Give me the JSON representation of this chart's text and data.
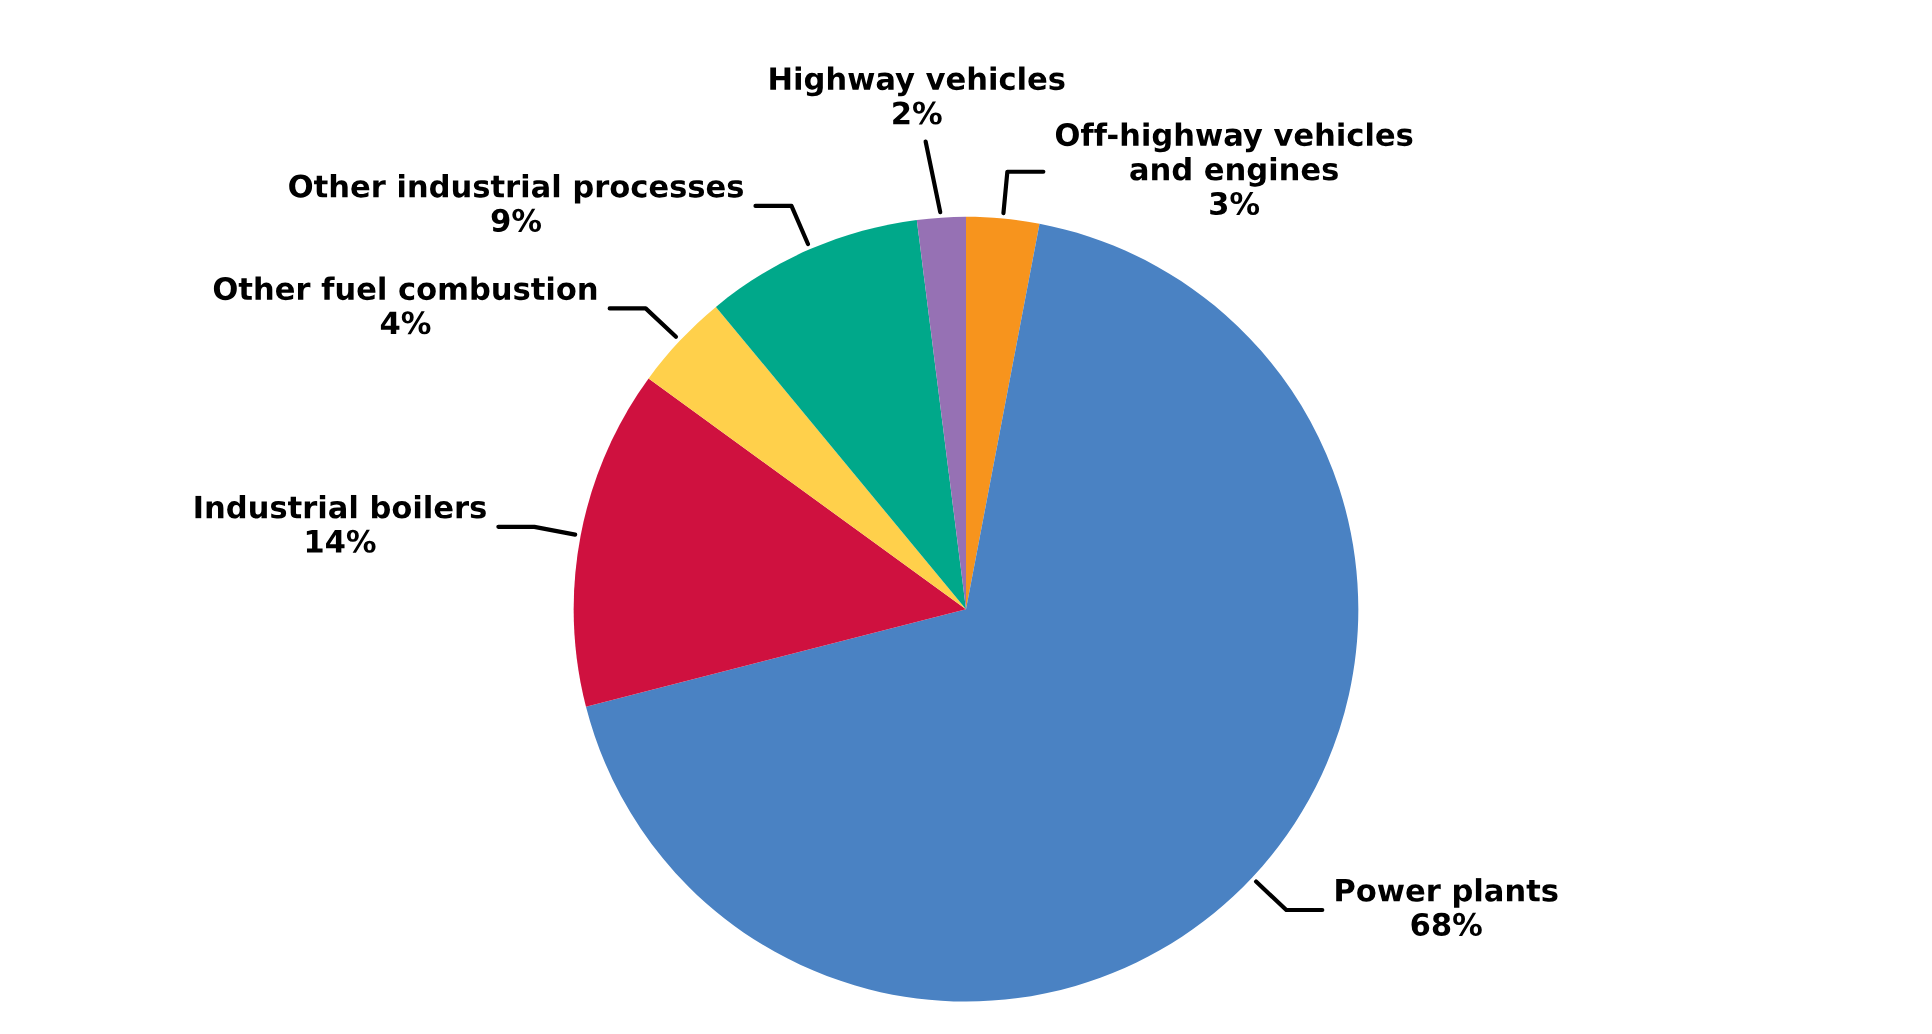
{
  "chart_data": {
    "type": "pie",
    "categories": [
      "Off-highway vehicles\nand engines",
      "Power plants",
      "Industrial boilers",
      "Other fuel combustion",
      "Other industrial processes",
      "Highway vehicles"
    ],
    "values": [
      3,
      68,
      14,
      4,
      9,
      2
    ],
    "colors": [
      "#f7941d",
      "#4a82c3",
      "#cf113f",
      "#ffd04b",
      "#00a88a",
      "#9671b4"
    ],
    "value_labels": [
      "3%",
      "68%",
      "14%",
      "4%",
      "9%",
      "2%"
    ]
  }
}
